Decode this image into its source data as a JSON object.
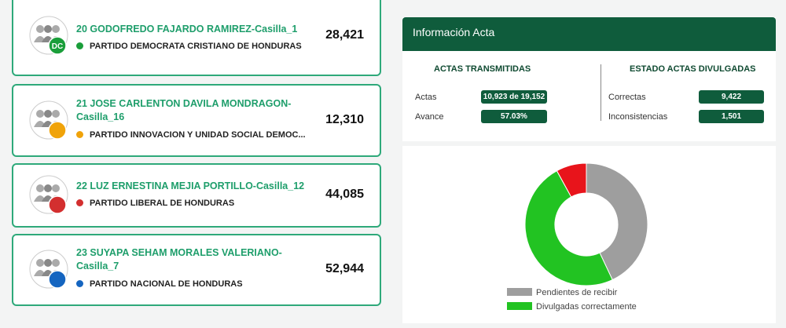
{
  "candidates": [
    {
      "name": "20 GODOFREDO FAJARDO RAMIREZ-Casilla_1",
      "party": "PARTIDO DEMOCRATA CRISTIANO DE HONDURAS",
      "votes": "28,421",
      "badge": "DC",
      "party_color": "#1a9e3a"
    },
    {
      "name": "21 JOSE CARLENTON DAVILA MONDRAGON-Casilla_16",
      "party": "PARTIDO INNOVACION Y UNIDAD SOCIAL DEMOC...",
      "votes": "12,310",
      "party_color": "#f0a30a"
    },
    {
      "name": "22 LUZ ERNESTINA MEJIA PORTILLO-Casilla_12",
      "party": "PARTIDO LIBERAL DE HONDURAS",
      "votes": "44,085",
      "party_color": "#d32f2f"
    },
    {
      "name": "23 SUYAPA SEHAM MORALES VALERIANO-Casilla_7",
      "party": "PARTIDO NACIONAL DE HONDURAS",
      "votes": "52,944",
      "party_color": "#1565c0"
    }
  ],
  "panel": {
    "title": "Información Acta",
    "transmitted": {
      "heading": "ACTAS TRANSMITIDAS",
      "rows": [
        {
          "label": "Actas",
          "value": "10,923 de 19,152"
        },
        {
          "label": "Avance",
          "value": "57.03%"
        }
      ]
    },
    "status": {
      "heading": "ESTADO ACTAS DIVULGADAS",
      "rows": [
        {
          "label": "Correctas",
          "value": "9,422"
        },
        {
          "label": "Inconsistencias",
          "value": "1,501"
        }
      ]
    }
  },
  "chart_data": {
    "type": "pie",
    "donut": true,
    "categories": [
      "Pendientes de recibir",
      "Divulgadas correctamente",
      null
    ],
    "values": [
      43,
      49,
      8
    ],
    "colors": [
      "#9e9e9e",
      "#22c322",
      "#e8141b"
    ]
  }
}
